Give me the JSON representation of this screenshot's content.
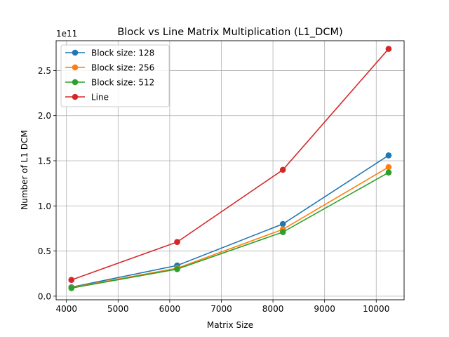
{
  "chart_data": {
    "type": "line",
    "title": "Block vs Line Matrix Multiplication (L1_DCM)",
    "xlabel": "Matrix Size",
    "ylabel": "Number of L1 DCM",
    "y_offset_label": "1e11",
    "xlim": [
      3800,
      10540
    ],
    "ylim": [
      -0.04,
      2.83
    ],
    "y_unit_multiplier": 100000000000,
    "x_ticks": [
      4000,
      5000,
      6000,
      7000,
      8000,
      9000,
      10000
    ],
    "x_tick_labels": [
      "4000",
      "5000",
      "6000",
      "7000",
      "8000",
      "9000",
      "10000"
    ],
    "y_ticks": [
      0.0,
      0.5,
      1.0,
      1.5,
      2.0,
      2.5
    ],
    "y_tick_labels": [
      "0.0",
      "0.5",
      "1.0",
      "1.5",
      "2.0",
      "2.5"
    ],
    "grid": true,
    "legend_position": "top-left",
    "x": [
      4096,
      6144,
      8192,
      10240
    ],
    "series": [
      {
        "name": "Block size: 128",
        "color": "#1f77b4",
        "values": [
          0.1,
          0.34,
          0.8,
          1.56
        ]
      },
      {
        "name": "Block size: 256",
        "color": "#ff7f0e",
        "values": [
          0.095,
          0.31,
          0.74,
          1.43
        ]
      },
      {
        "name": "Block size: 512",
        "color": "#2ca02c",
        "values": [
          0.09,
          0.3,
          0.71,
          1.37
        ]
      },
      {
        "name": "Line",
        "color": "#d62728",
        "values": [
          0.18,
          0.6,
          1.4,
          2.74
        ]
      }
    ]
  }
}
